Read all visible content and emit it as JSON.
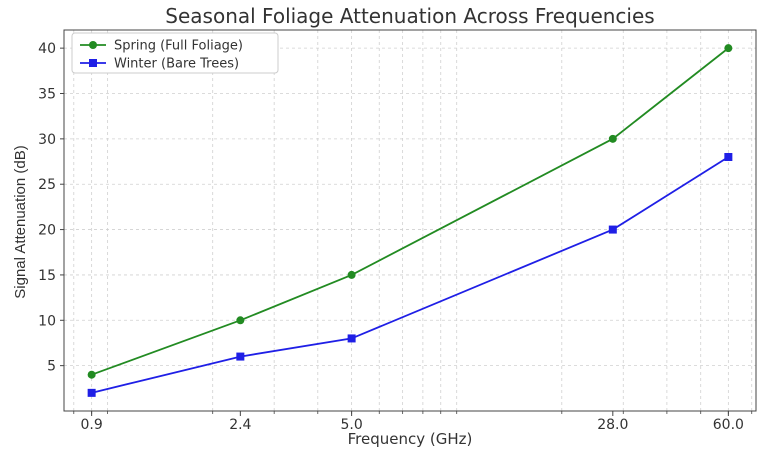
{
  "chart_data": {
    "type": "line",
    "title": "Seasonal Foliage Attenuation Across Frequencies",
    "xlabel": "Frequency (GHz)",
    "ylabel": "Signal Attenuation (dB)",
    "x_scale": "log",
    "x": [
      0.9,
      2.4,
      5.0,
      28.0,
      60.0
    ],
    "x_tick_labels": [
      "0.9",
      "2.4",
      "5.0",
      "28.0",
      "60.0"
    ],
    "y_ticks": [
      5,
      10,
      15,
      20,
      25,
      30,
      35,
      40
    ],
    "ylim": [
      0,
      42
    ],
    "grid": true,
    "legend_position": "top-left",
    "series": [
      {
        "name": "Spring (Full Foliage)",
        "values": [
          4,
          10,
          15,
          30,
          40
        ],
        "color": "#228B22",
        "marker": "circle"
      },
      {
        "name": "Winter (Bare Trees)",
        "values": [
          2,
          6,
          8,
          20,
          28
        ],
        "color": "#1f1fe6",
        "marker": "square"
      }
    ]
  }
}
